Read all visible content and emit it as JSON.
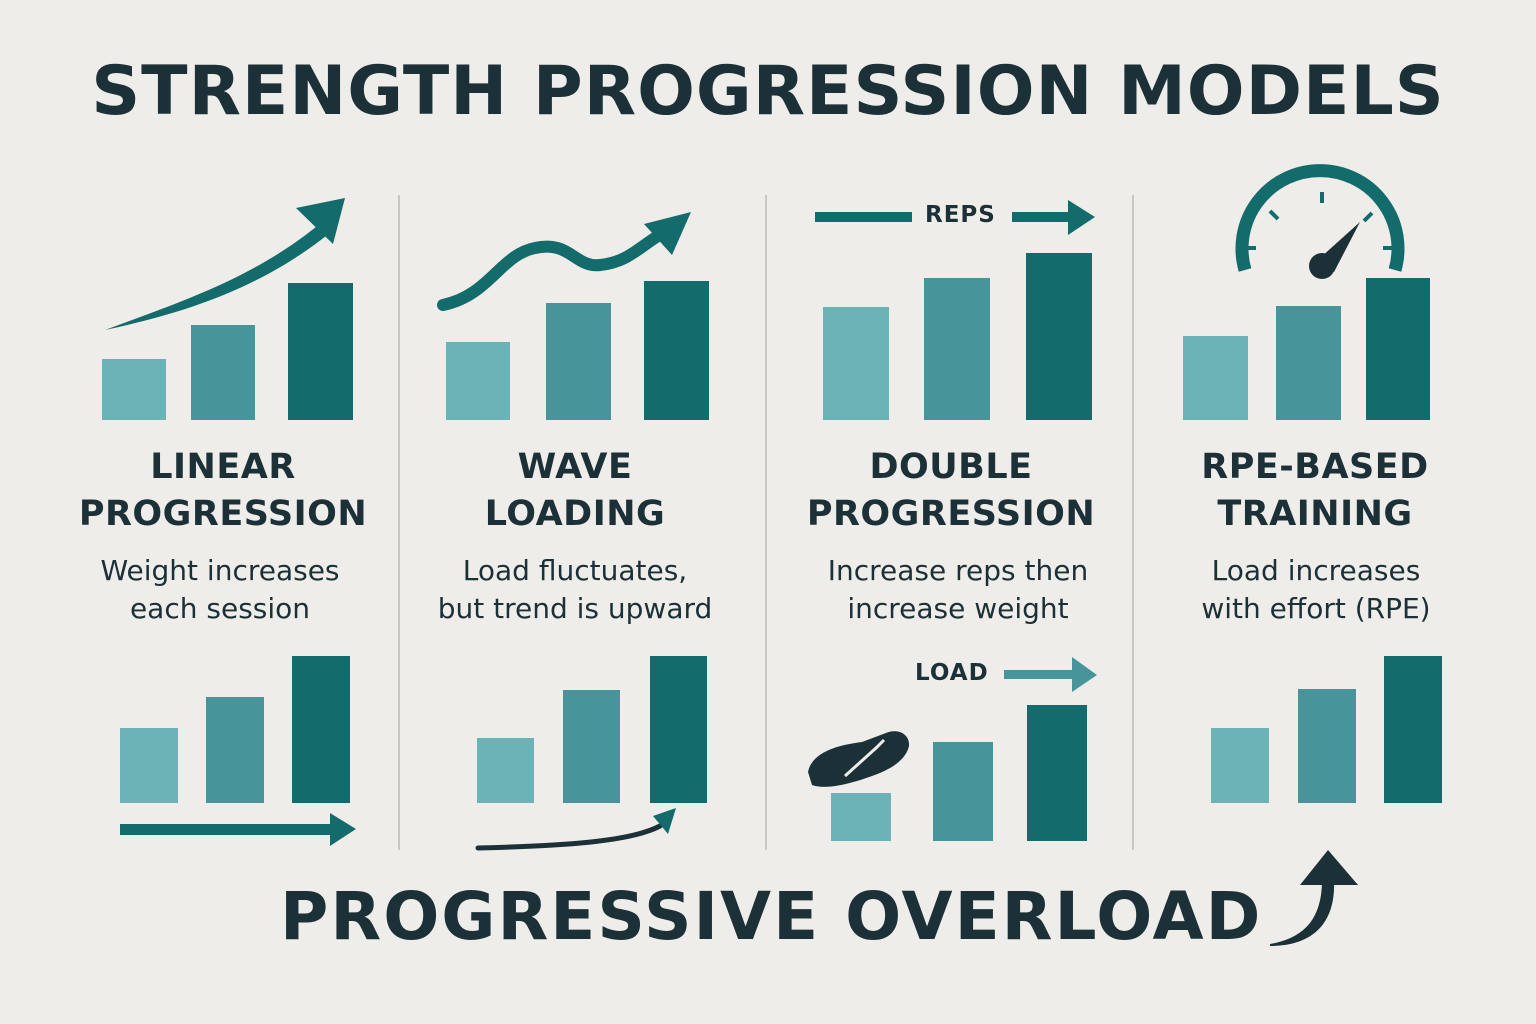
{
  "title": "STRENGTH PROGRESSION MODELS",
  "colors": {
    "background": "#efede9",
    "text_dark": "#1c3038",
    "bar_light": "#6cb3b8",
    "bar_mid": "#47959a",
    "bar_dark": "#136b6c",
    "divider": "#c9c7c2"
  },
  "panels": [
    {
      "heading_line1": "LINEAR",
      "heading_line2": "PROGRESSION",
      "desc_line1": "Weight increases",
      "desc_line2": "each session",
      "icons": [
        "curved-up-arrow-icon",
        "bar-chart-icon",
        "right-arrow-icon"
      ]
    },
    {
      "heading_line1": "WAVE",
      "heading_line2": "LOADING",
      "desc_line1": "Load fluctuates,",
      "desc_line2": "but trend is upward",
      "icons": [
        "wave-arrow-icon",
        "bar-chart-icon",
        "curved-arrow-icon"
      ]
    },
    {
      "heading_line1": "DOUBLE",
      "heading_line2": "PROGRESSION",
      "desc_line1": "Increase reps then",
      "desc_line2": "increase weight",
      "reps_label": "REPS",
      "load_label": "LOAD",
      "icons": [
        "reps-arrow-icon",
        "bar-chart-icon",
        "load-arrow-icon",
        "flexed-arm-icon"
      ]
    },
    {
      "heading_line1": "RPE-BASED",
      "heading_line2": "TRAINING",
      "desc_line1": "Load increases",
      "desc_line2": "with effort (RPE)",
      "icons": [
        "gauge-icon",
        "bar-chart-icon"
      ]
    }
  ],
  "footer": {
    "text": "PROGRESSIVE OVERLOAD",
    "icon": "curved-up-arrow-icon"
  }
}
